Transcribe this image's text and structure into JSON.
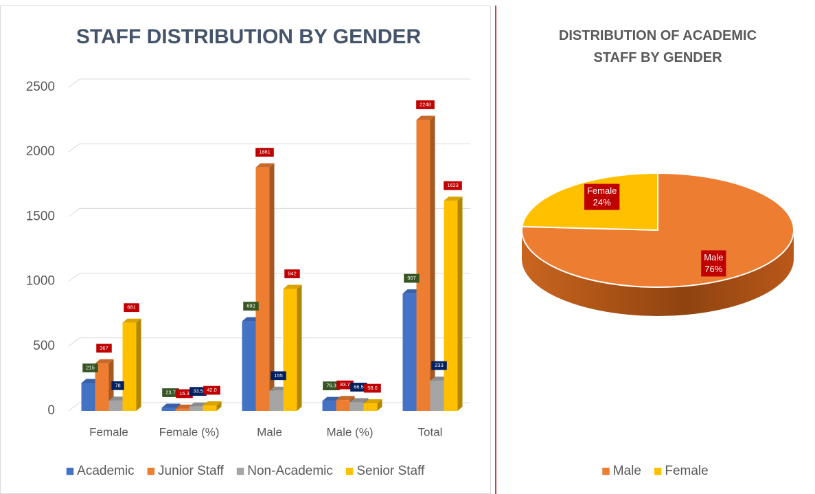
{
  "chart_data": [
    {
      "type": "bar",
      "title": "STAFF DISTRIBUTION BY GENDER",
      "categories": [
        "Female",
        "Female (%)",
        "Male",
        "Male (%)",
        "Total"
      ],
      "series": [
        {
          "name": "Academic",
          "color": "#4472c4",
          "label_color": "#375623",
          "values": [
            215,
            23.7,
            692,
            76.3,
            907
          ]
        },
        {
          "name": "Junior Staff",
          "color": "#ed7d31",
          "label_color": "#c00000",
          "values": [
            367,
            16.3,
            1881,
            83.7,
            2248
          ]
        },
        {
          "name": "Non-Academic",
          "color": "#a5a5a5",
          "label_color": "#002060",
          "values": [
            78,
            33.5,
            155,
            66.5,
            233
          ]
        },
        {
          "name": "Senior Staff",
          "color": "#ffc000",
          "label_color": "#c00000",
          "values": [
            681,
            42.0,
            942,
            58.0,
            1623
          ],
          "value_labels": [
            "681",
            "42.0",
            "942",
            "58.0",
            "1623"
          ]
        }
      ],
      "ylim": [
        0,
        2500
      ],
      "yticks": [
        0,
        500,
        1000,
        1500,
        2000,
        2500
      ],
      "grid": true,
      "legend": "bottom"
    },
    {
      "type": "pie",
      "title": "DISTRIBUTION OF ACADEMIC STAFF BY GENDER",
      "categories": [
        "Male",
        "Female"
      ],
      "values": [
        76,
        24
      ],
      "value_labels": [
        "76%",
        "24%"
      ],
      "colors": [
        "#ed7d31",
        "#ffc000"
      ],
      "label_color": "#c00000",
      "legend": "bottom"
    }
  ]
}
